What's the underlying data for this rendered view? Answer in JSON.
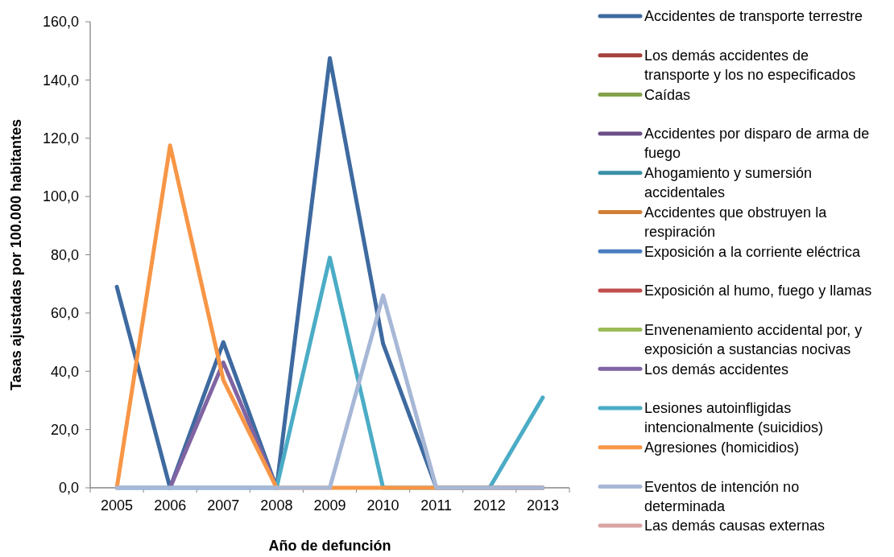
{
  "chart_data": {
    "type": "line",
    "xlabel": "Año de defunción",
    "ylabel": "Tasas ajustadas por 100.000 habitantes",
    "categories": [
      "2005",
      "2006",
      "2007",
      "2008",
      "2009",
      "2010",
      "2011",
      "2012",
      "2013"
    ],
    "ylim": [
      0,
      160
    ],
    "yticks": [
      {
        "value": 0,
        "label": "0,0"
      },
      {
        "value": 20,
        "label": "20,0"
      },
      {
        "value": 40,
        "label": "40,0"
      },
      {
        "value": 60,
        "label": "60,0"
      },
      {
        "value": 80,
        "label": "80,0"
      },
      {
        "value": 100,
        "label": "100,0"
      },
      {
        "value": 120,
        "label": "120,0"
      },
      {
        "value": 140,
        "label": "140,0"
      },
      {
        "value": 160,
        "label": "160,0"
      }
    ],
    "grid": false,
    "legend": "right",
    "marker": "none",
    "line_style": "solid",
    "series": [
      {
        "name": "Accidentes de transporte terrestre",
        "color": "#3e6aa0",
        "values": [
          69,
          0,
          50,
          0,
          147.5,
          49.5,
          0,
          0,
          0
        ]
      },
      {
        "name": "Los demás accidentes de transporte y los no especificados",
        "color": "#a5403d",
        "values": [
          null,
          null,
          null,
          null,
          null,
          null,
          null,
          null,
          null
        ]
      },
      {
        "name": "Caídas",
        "color": "#84a24a",
        "values": [
          null,
          null,
          null,
          null,
          null,
          null,
          null,
          null,
          null
        ]
      },
      {
        "name": "Accidentes por disparo de arma de fuego",
        "color": "#6a5087",
        "values": [
          null,
          null,
          null,
          null,
          null,
          null,
          null,
          null,
          null
        ]
      },
      {
        "name": "Ahogamiento y sumersión accidentales",
        "color": "#3a92a6",
        "values": [
          null,
          null,
          null,
          null,
          null,
          null,
          null,
          null,
          null
        ]
      },
      {
        "name": "Accidentes que obstruyen la respiración",
        "color": "#d27f36",
        "values": [
          null,
          null,
          null,
          null,
          null,
          null,
          null,
          null,
          null
        ]
      },
      {
        "name": "Exposición a la corriente eléctrica",
        "color": "#4a7ec0",
        "values": [
          null,
          null,
          null,
          null,
          null,
          null,
          null,
          null,
          null
        ]
      },
      {
        "name": "Exposición al humo, fuego y llamas",
        "color": "#c0504d",
        "values": [
          null,
          null,
          null,
          null,
          null,
          null,
          null,
          null,
          null
        ]
      },
      {
        "name": "Envenenamiento accidental por, y exposición a sustancias nocivas",
        "color": "#9bbb59",
        "values": [
          null,
          null,
          null,
          null,
          null,
          null,
          null,
          null,
          null
        ]
      },
      {
        "name": "Los demás accidentes",
        "color": "#8064a2",
        "values": [
          null,
          0,
          43,
          0,
          null,
          null,
          null,
          null,
          null
        ]
      },
      {
        "name": "Lesiones autoinfligidas intencionalmente (suicidios)",
        "color": "#4bacc6",
        "values": [
          0,
          0,
          0,
          0,
          79,
          0,
          0,
          0,
          31
        ]
      },
      {
        "name": "Agresiones (homicidios)",
        "color": "#f79646",
        "values": [
          0,
          117.5,
          37,
          0,
          0,
          0,
          0,
          0,
          0
        ]
      },
      {
        "name": "Eventos de intención no determinada",
        "color": "#a7b7d6",
        "values": [
          0,
          0,
          0,
          0,
          0,
          66,
          0,
          0,
          0
        ]
      },
      {
        "name": "Las demás causas externas",
        "color": "#d9a5a4",
        "values": [
          null,
          null,
          null,
          null,
          null,
          null,
          null,
          null,
          null
        ]
      }
    ]
  }
}
